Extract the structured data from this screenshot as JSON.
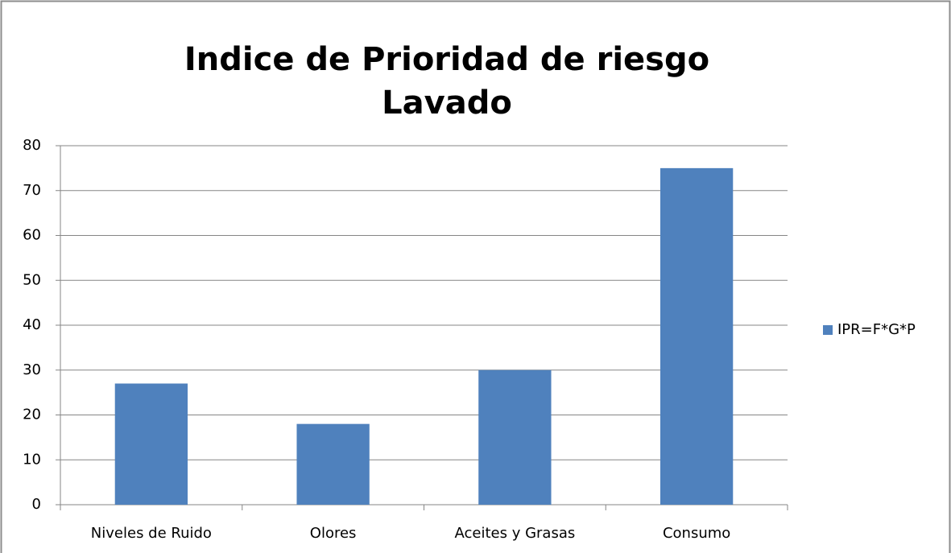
{
  "chart_data": {
    "type": "bar",
    "title": [
      "Indice de Prioridad de riesgo",
      "Lavado"
    ],
    "categories": [
      "Niveles de Ruido",
      "Olores",
      "Aceites y Grasas",
      "Consumo"
    ],
    "series": [
      {
        "name": "IPR=F*G*P",
        "color": "#4f81bd",
        "values": [
          27,
          18,
          30,
          75
        ]
      }
    ],
    "ylim": [
      0,
      80
    ],
    "yticks": [
      0,
      10,
      20,
      30,
      40,
      50,
      60,
      70,
      80
    ],
    "grid": true,
    "legend": "right"
  }
}
